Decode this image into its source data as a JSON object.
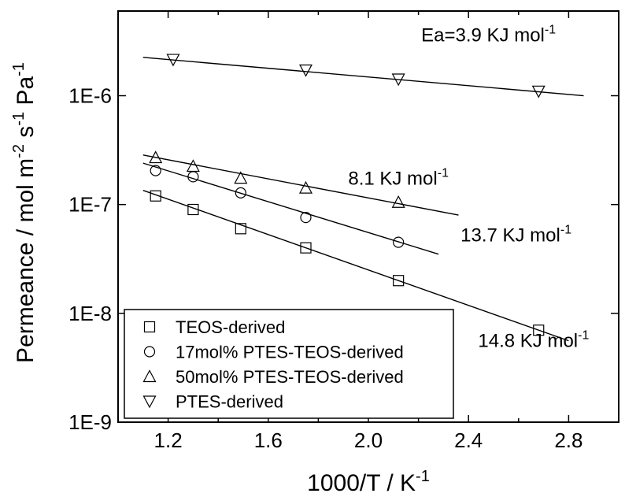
{
  "chart_data": {
    "type": "scatter",
    "title": "",
    "xlabel": "1000/T / K",
    "xlabel_sup": "-1",
    "ylabel_parts": [
      {
        "text": "Permeance / mol m",
        "sup": false
      },
      {
        "text": "-2",
        "sup": true
      },
      {
        "text": " s",
        "sup": false
      },
      {
        "text": "-1",
        "sup": true
      },
      {
        "text": " Pa",
        "sup": false
      },
      {
        "text": "-1",
        "sup": true
      }
    ],
    "xlim": [
      1.0,
      3.0
    ],
    "ylim": [
      1e-09,
      6e-06
    ],
    "yscale": "log",
    "xticks": [
      "1.2",
      "1.6",
      "2.0",
      "2.4",
      "2.8"
    ],
    "xtick_values": [
      1.2,
      1.6,
      2.0,
      2.4,
      2.8
    ],
    "yticks": [
      "1E-9",
      "1E-8",
      "1E-7",
      "1E-6"
    ],
    "ytick_values": [
      1e-09,
      1e-08,
      1e-07,
      1e-06
    ],
    "grid": false,
    "legend_position": "bottom-left",
    "series": [
      {
        "name": "TEOS-derived",
        "marker": "square",
        "x": [
          1.15,
          1.3,
          1.49,
          1.75,
          2.12,
          2.68
        ],
        "y": [
          1.2e-07,
          9e-08,
          6e-08,
          4e-08,
          2e-08,
          7e-09
        ],
        "fit": {
          "x": [
            1.1,
            2.8
          ],
          "y": [
            1.35e-07,
            5.6e-09
          ]
        }
      },
      {
        "name": "17mol% PTES-TEOS-derived",
        "marker": "circle",
        "x": [
          1.15,
          1.3,
          1.49,
          1.75,
          2.12
        ],
        "y": [
          2.05e-07,
          1.8e-07,
          1.28e-07,
          7.6e-08,
          4.5e-08
        ],
        "fit": {
          "x": [
            1.1,
            2.28
          ],
          "y": [
            2.4e-07,
            3.5e-08
          ]
        }
      },
      {
        "name": "50mol% PTES-TEOS-derived",
        "marker": "triangle-up",
        "x": [
          1.15,
          1.3,
          1.49,
          1.75,
          2.12
        ],
        "y": [
          2.7e-07,
          2.25e-07,
          1.75e-07,
          1.42e-07,
          1.05e-07
        ],
        "fit": {
          "x": [
            1.1,
            2.36
          ],
          "y": [
            2.85e-07,
            8e-08
          ]
        }
      },
      {
        "name": "PTES-derived",
        "marker": "triangle-down",
        "x": [
          1.22,
          1.75,
          2.12,
          2.68
        ],
        "y": [
          2.15e-06,
          1.72e-06,
          1.42e-06,
          1.1e-06
        ],
        "fit": {
          "x": [
            1.1,
            2.86
          ],
          "y": [
            2.25e-06,
            1e-06
          ]
        }
      }
    ],
    "annotations": [
      {
        "text": "Ea=3.9 KJ mol",
        "sup": "-1",
        "x": 2.48,
        "y": 3.15e-06
      },
      {
        "text": "8.1 KJ mol",
        "sup": "-1",
        "x": 2.12,
        "y": 1.52e-07
      },
      {
        "text": "13.7 KJ mol",
        "sup": "-1",
        "x": 2.59,
        "y": 4.6e-08
      },
      {
        "text": "14.8 KJ mol",
        "sup": "-1",
        "x": 2.66,
        "y": 4.9e-09
      }
    ]
  }
}
